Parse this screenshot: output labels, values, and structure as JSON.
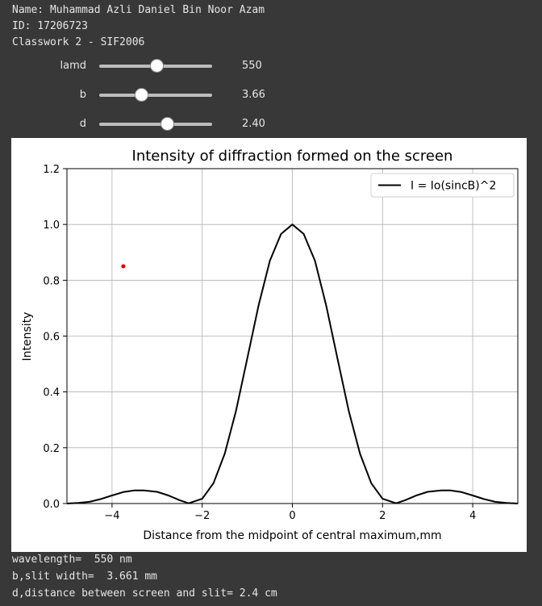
{
  "header": {
    "name_line": "Name: Muhammad Azli Daniel Bin Noor Azam",
    "id_line": "ID: 17206723",
    "classwork_line": "Classwork 2 - SIF2006"
  },
  "sliders": [
    {
      "label": "lamd",
      "value_text": "550",
      "fraction": 0.51
    },
    {
      "label": "b",
      "value_text": "3.66",
      "fraction": 0.37
    },
    {
      "label": "d",
      "value_text": "2.40",
      "fraction": 0.6
    }
  ],
  "chart_data": {
    "type": "line",
    "title": "Intensity of diffraction formed on the screen",
    "xlabel": "Distance from the midpoint of central maximum,mm",
    "ylabel": "Intensity",
    "xlim": [
      -5,
      5
    ],
    "ylim": [
      0,
      1.2
    ],
    "xticks": [
      -4,
      -2,
      0,
      2,
      4
    ],
    "xtick_labels": [
      "−4",
      "−2",
      "0",
      "2",
      "4"
    ],
    "yticks": [
      0.0,
      0.2,
      0.4,
      0.6,
      0.8,
      1.0,
      1.2
    ],
    "ytick_labels": [
      "0.0",
      "0.2",
      "0.4",
      "0.6",
      "0.8",
      "1.0",
      "1.2"
    ],
    "grid": true,
    "legend": {
      "placement": "top-right",
      "entries": [
        "I = Io(sincB)^2"
      ]
    },
    "series": [
      {
        "name": "I = Io(sincB)^2",
        "color": "#000000",
        "x": [
          -5.0,
          -4.75,
          -4.5,
          -4.25,
          -4.0,
          -3.75,
          -3.5,
          -3.3,
          -3.0,
          -2.75,
          -2.5,
          -2.3,
          -2.0,
          -1.75,
          -1.5,
          -1.25,
          -1.0,
          -0.75,
          -0.5,
          -0.25,
          0.0,
          0.25,
          0.5,
          0.75,
          1.0,
          1.25,
          1.5,
          1.75,
          2.0,
          2.3,
          2.5,
          2.75,
          3.0,
          3.3,
          3.5,
          3.75,
          4.0,
          4.25,
          4.5,
          4.75,
          5.0
        ],
        "y": [
          0.0,
          0.002,
          0.006,
          0.016,
          0.029,
          0.041,
          0.047,
          0.047,
          0.042,
          0.029,
          0.012,
          0.001,
          0.017,
          0.073,
          0.178,
          0.332,
          0.52,
          0.71,
          0.87,
          0.966,
          1.0,
          0.966,
          0.87,
          0.71,
          0.52,
          0.332,
          0.178,
          0.073,
          0.017,
          0.001,
          0.012,
          0.029,
          0.042,
          0.047,
          0.047,
          0.041,
          0.029,
          0.016,
          0.006,
          0.002,
          0.0
        ]
      },
      {
        "color": "#d40000",
        "x": [
          -3.75
        ],
        "y": [
          0.85
        ],
        "marker": "point"
      }
    ]
  },
  "output": {
    "wavelength_line": "wavelength=  550 nm",
    "slit_width_line": "b,slit width=  3.661 mm",
    "distance_line": "d,distance between screen and slit= 2.4 cm"
  }
}
